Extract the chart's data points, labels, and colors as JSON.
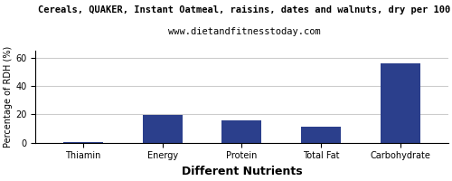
{
  "title_line1": "Cereals, QUAKER, Instant Oatmeal, raisins, dates and walnuts, dry per 100",
  "title_line2": "www.dietandfitnesstoday.com",
  "categories": [
    "Thiamin",
    "Energy",
    "Protein",
    "Total Fat",
    "Carbohydrate"
  ],
  "values": [
    0.4,
    19.5,
    16.0,
    11.0,
    56.0
  ],
  "bar_color": "#2b3f8c",
  "ylabel": "Percentage of RDH (%)",
  "xlabel": "Different Nutrients",
  "ylim": [
    0,
    65
  ],
  "yticks": [
    0,
    20,
    40,
    60
  ],
  "background_color": "#ffffff",
  "grid_color": "#cccccc",
  "title_fontsize": 7.5,
  "subtitle_fontsize": 7.5,
  "axis_label_fontsize": 7,
  "tick_fontsize": 7,
  "xlabel_fontsize": 9,
  "xlabel_fontweight": "bold"
}
